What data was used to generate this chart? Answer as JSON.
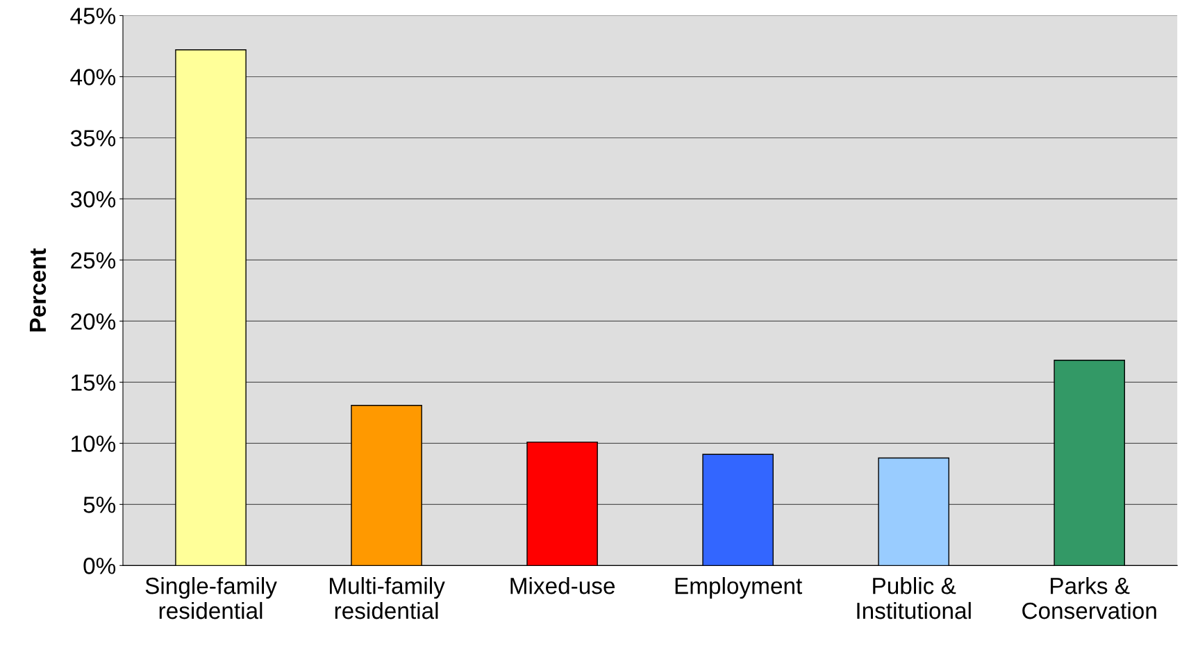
{
  "chart_data": {
    "type": "bar",
    "ylabel": "Percent",
    "categories": [
      "Single-family\nresidential",
      "Multi-family\nresidential",
      "Mixed-use",
      "Employment",
      "Public &\nInstitutional",
      "Parks &\nConservation"
    ],
    "values": [
      42.2,
      13.1,
      10.1,
      9.1,
      8.8,
      16.8
    ],
    "colors": [
      "#ffff99",
      "#ff9900",
      "#ff0000",
      "#3366ff",
      "#99ccff",
      "#339966"
    ],
    "ylim": [
      0,
      45
    ],
    "yticks": [
      {
        "value": 0,
        "label": "0%"
      },
      {
        "value": 5,
        "label": "5%"
      },
      {
        "value": 10,
        "label": "10%"
      },
      {
        "value": 15,
        "label": "15%"
      },
      {
        "value": 20,
        "label": "20%"
      },
      {
        "value": 25,
        "label": "25%"
      },
      {
        "value": 30,
        "label": "30%"
      },
      {
        "value": 35,
        "label": "35%"
      },
      {
        "value": 40,
        "label": "40%"
      },
      {
        "value": 45,
        "label": "45%"
      }
    ],
    "grid": "y"
  }
}
